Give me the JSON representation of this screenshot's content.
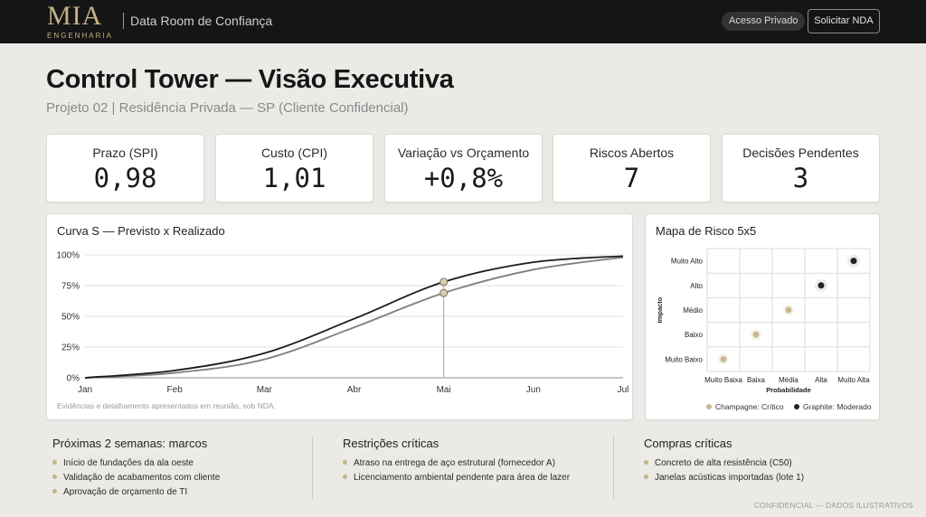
{
  "header": {
    "logo": "MIA",
    "logo_sub": "ENGENHARIA",
    "app_title": "Data Room de Confiança",
    "private_label": "Acesso Privado",
    "nda_button": "Solicitar NDA"
  },
  "page": {
    "title": "Control Tower — Visão Executiva",
    "subtitle": "Projeto 02 | Residência Privada — SP (Cliente Confidencial)"
  },
  "kpis": [
    {
      "label": "Prazo (SPI)",
      "value": "0,98"
    },
    {
      "label": "Custo (CPI)",
      "value": "1,01"
    },
    {
      "label": "Variação vs Orçamento",
      "value": "+0,8%"
    },
    {
      "label": "Riscos Abertos",
      "value": "7"
    },
    {
      "label": "Decisões Pendentes",
      "value": "3"
    }
  ],
  "chart_data": [
    {
      "type": "line",
      "title": "Curva S — Previsto x Realizado",
      "x": [
        "Jan",
        "Feb",
        "Mar",
        "Abr",
        "Mai",
        "Jun",
        "Jul"
      ],
      "yticks": [
        "0%",
        "25%",
        "50%",
        "75%",
        "100%"
      ],
      "ylim": [
        0,
        100
      ],
      "series": [
        {
          "values": [
            0,
            6,
            20,
            48,
            78,
            94,
            99
          ],
          "color": "#1b1b1b"
        },
        {
          "values": [
            0,
            4,
            15,
            41,
            69,
            88,
            98
          ],
          "color": "#7f7f7f"
        }
      ],
      "marker_x": "Mai",
      "grid": true,
      "footnote": "Evidências e detalhamento apresentados em reunião, sob NDA."
    },
    {
      "type": "scatter",
      "title": "Mapa de Risco 5x5",
      "xlabel": "Probabilidade",
      "ylabel": "Impacto",
      "x_categories": [
        "Muito Baixa",
        "Baixa",
        "Média",
        "Alta",
        "Muito Alta"
      ],
      "y_categories": [
        "Muito Baixo",
        "Baixo",
        "Médio",
        "Alto",
        "Muito Alto"
      ],
      "points": [
        {
          "x": "Muito Baixa",
          "y": "Muito Baixo",
          "color": "#c9b98e"
        },
        {
          "x": "Baixa",
          "y": "Baixo",
          "color": "#c9b98e"
        },
        {
          "x": "Média",
          "y": "Médio",
          "color": "#c9b98e"
        },
        {
          "x": "Alta",
          "y": "Alto",
          "color": "#222222"
        },
        {
          "x": "Muito Alta",
          "y": "Muito Alto",
          "color": "#222222"
        }
      ],
      "legend": [
        {
          "label": "Champagne: Crítico",
          "color": "#c9b98e"
        },
        {
          "label": "Graphite: Moderado",
          "color": "#222222"
        }
      ],
      "grid": true
    }
  ],
  "bottom": [
    {
      "title": "Próximas 2 semanas: marcos",
      "items": [
        "Início de fundações da ala oeste",
        "Validação de acabamentos com cliente",
        "Aprovação de orçamento de TI"
      ]
    },
    {
      "title": "Restrições críticas",
      "items": [
        "Atraso na entrega de aço estrutural (fornecedor A)",
        "Licenciamento ambiental pendente para área de lazer"
      ]
    },
    {
      "title": "Compras críticas",
      "items": [
        "Concreto de alta resistência (C50)",
        "Janelas acústicas importadas (lote 1)"
      ]
    }
  ],
  "confidential": "CONFIDENCIAL — DADOS ILUSTRATIVOS",
  "colors": {
    "accent": "#c4b286",
    "topbar": "#151515",
    "background": "#ebeae6"
  }
}
